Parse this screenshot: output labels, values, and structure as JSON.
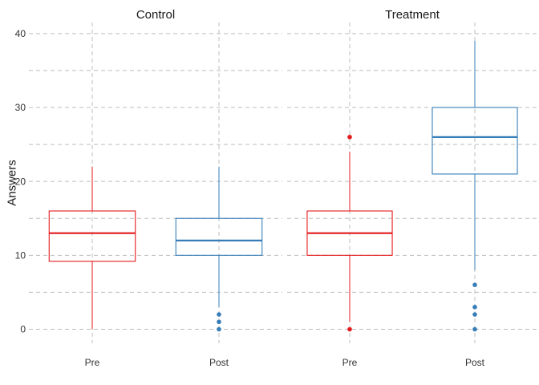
{
  "chart_data": {
    "type": "boxplot",
    "ylabel": "Answers",
    "xlabel": "",
    "ylim": [
      -1.9,
      41.5
    ],
    "y_ticks": [
      0,
      10,
      20,
      30,
      40
    ],
    "grid": true,
    "legend": "none",
    "colors": {
      "Pre": "#e41a1c",
      "Post": "#377eb8"
    },
    "facets": [
      {
        "title": "Control",
        "categories": [
          "Pre",
          "Post"
        ],
        "boxes": [
          {
            "category": "Pre",
            "min": 0,
            "q1": 9.2,
            "median": 13,
            "q3": 16,
            "max": 22,
            "outliers": []
          },
          {
            "category": "Post",
            "min": 3,
            "q1": 10,
            "median": 12,
            "q3": 15,
            "max": 22,
            "outliers": [
              0,
              1,
              2
            ]
          }
        ]
      },
      {
        "title": "Treatment",
        "categories": [
          "Pre",
          "Post"
        ],
        "boxes": [
          {
            "category": "Pre",
            "min": 1,
            "q1": 10,
            "median": 13,
            "q3": 16,
            "max": 24,
            "outliers": [
              0,
              26
            ]
          },
          {
            "category": "Post",
            "min": 8,
            "q1": 21,
            "median": 26,
            "q3": 30,
            "max": 39,
            "outliers": [
              0,
              2,
              3,
              6
            ]
          }
        ]
      }
    ]
  }
}
